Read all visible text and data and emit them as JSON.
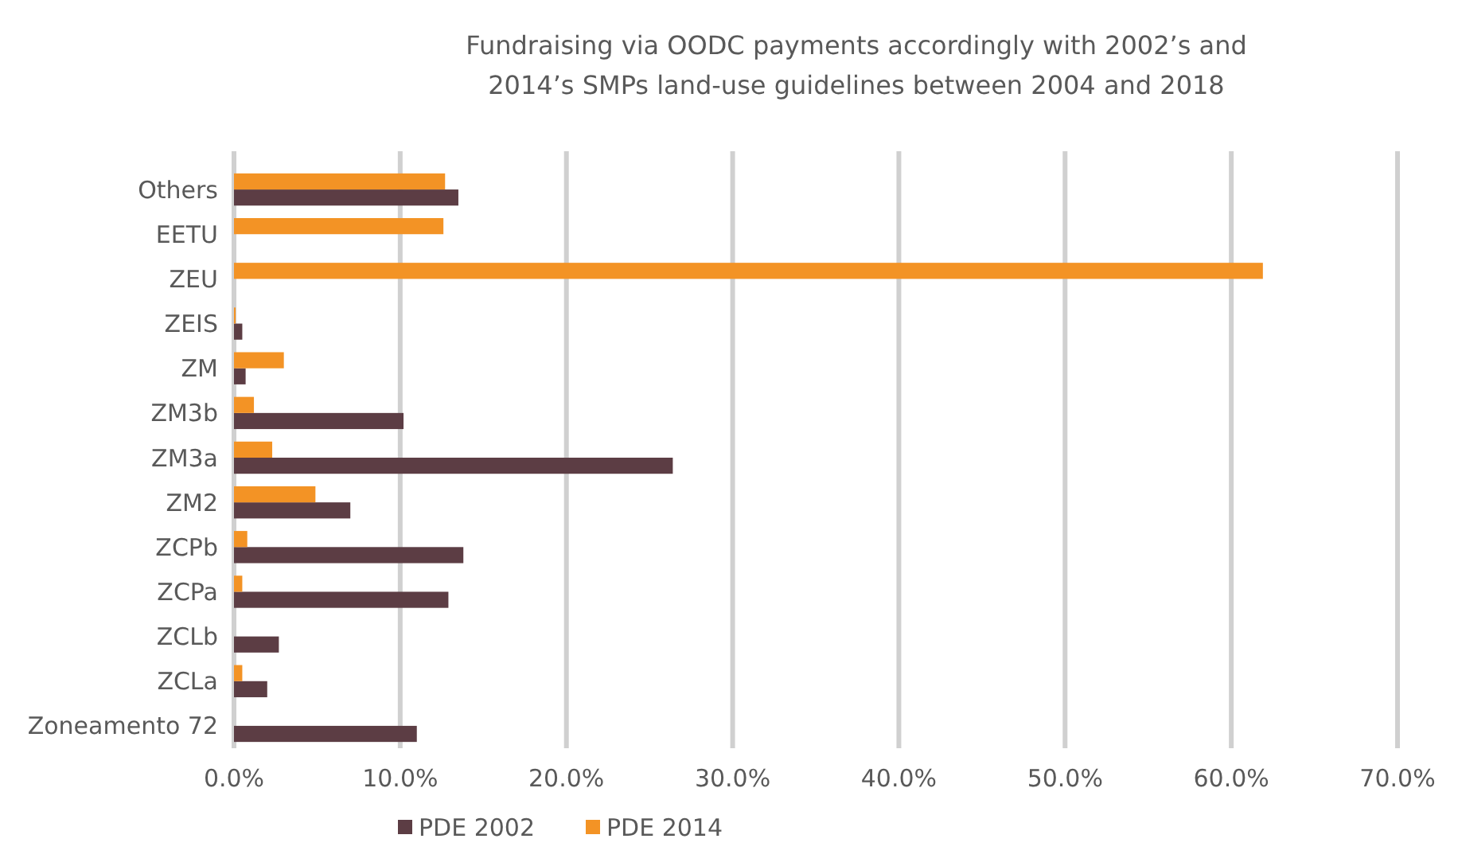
{
  "chart_data": {
    "type": "bar",
    "orientation": "horizontal",
    "title": "Fundraising via OODC payments accordingly with 2002’s and 2014’s SMPs land-use guidelines between 2004 and 2018",
    "categories": [
      "Others",
      "EETU",
      "ZEU",
      "ZEIS",
      "ZM",
      "ZM3b",
      "ZM3a",
      "ZM2",
      "ZCPb",
      "ZCPa",
      "ZCLb",
      "ZCLa",
      "Zoneamento 72"
    ],
    "series": [
      {
        "name": "PDE 2002",
        "color": "#5c3d44",
        "values": [
          13.5,
          null,
          null,
          0.5,
          0.7,
          10.2,
          26.4,
          7.0,
          13.8,
          12.9,
          2.7,
          2.0,
          11.0
        ]
      },
      {
        "name": "PDE 2014",
        "color": "#f39325",
        "values": [
          12.7,
          12.6,
          61.9,
          0.1,
          3.0,
          1.2,
          2.3,
          4.9,
          0.8,
          0.5,
          null,
          0.5,
          null
        ]
      }
    ],
    "xlim": [
      0,
      70
    ],
    "xticks": [
      {
        "value": 0,
        "label": "0.0%"
      },
      {
        "value": 10,
        "label": "10.0%"
      },
      {
        "value": 20,
        "label": "20.0%"
      },
      {
        "value": 30,
        "label": "30.0%"
      },
      {
        "value": 40,
        "label": "40.0%"
      },
      {
        "value": 50,
        "label": "50.0%"
      },
      {
        "value": 60,
        "label": "60.0%"
      },
      {
        "value": 70,
        "label": "70.0%"
      }
    ],
    "grid": "x",
    "legend": "bottom"
  }
}
